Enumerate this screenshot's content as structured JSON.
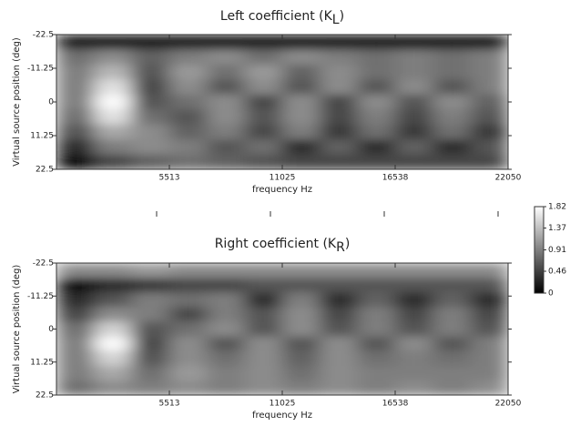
{
  "chart_data": [
    {
      "type": "heatmap",
      "title": "Left coefficient (K",
      "title_sub": "L",
      "title_end": ")",
      "xlabel": "frequency Hz",
      "ylabel": "Virtual source position (deg)",
      "xlim": [
        0,
        22050
      ],
      "xticks": [
        5513,
        11025,
        16538,
        22050
      ],
      "ylim": [
        -22.5,
        22.5
      ],
      "yticks": [
        -22.5,
        -11.25,
        0,
        11.25,
        22.5
      ],
      "z": [
        [
          0.2,
          0.2,
          0.2,
          0.2,
          0.2,
          0.2,
          0.2,
          0.2,
          0.2,
          0.2,
          0.2,
          0.2
        ],
        [
          0.8,
          1.0,
          0.7,
          0.9,
          1.0,
          0.8,
          1.0,
          0.9,
          0.8,
          0.9,
          0.8,
          0.9
        ],
        [
          0.9,
          1.3,
          0.6,
          1.1,
          0.8,
          1.1,
          0.7,
          1.0,
          0.8,
          0.9,
          0.8,
          0.9
        ],
        [
          0.9,
          1.6,
          0.5,
          1.0,
          0.6,
          1.0,
          0.6,
          1.0,
          0.6,
          1.0,
          0.6,
          0.9
        ],
        [
          0.9,
          1.8,
          0.6,
          0.8,
          1.0,
          0.5,
          1.0,
          0.5,
          1.0,
          0.6,
          1.0,
          0.7
        ],
        [
          0.8,
          1.6,
          0.8,
          0.6,
          1.0,
          0.6,
          1.0,
          0.5,
          0.9,
          0.5,
          0.9,
          0.6
        ],
        [
          0.6,
          1.2,
          1.0,
          0.7,
          0.9,
          0.5,
          0.9,
          0.4,
          0.8,
          0.4,
          0.8,
          0.4
        ],
        [
          0.3,
          0.9,
          1.0,
          0.9,
          0.6,
          0.8,
          0.3,
          0.7,
          0.3,
          0.7,
          0.3,
          0.6
        ],
        [
          0.1,
          0.5,
          0.7,
          0.8,
          0.7,
          0.6,
          0.5,
          0.5,
          0.5,
          0.5,
          0.5,
          0.5
        ]
      ]
    },
    {
      "type": "heatmap",
      "title": "Right coefficient (K",
      "title_sub": "R",
      "title_end": ")",
      "xlabel": "frequency Hz",
      "ylabel": "Virtual source position (deg)",
      "xlim": [
        0,
        22050
      ],
      "xticks": [
        5513,
        11025,
        16538,
        22050
      ],
      "ylim": [
        -22.5,
        22.5
      ],
      "yticks": [
        -22.5,
        -11.25,
        0,
        11.25,
        22.5
      ],
      "z": [
        [
          1.0,
          1.0,
          1.1,
          1.0,
          1.0,
          1.0,
          1.0,
          1.0,
          1.0,
          1.0,
          1.0,
          1.0
        ],
        [
          0.1,
          0.3,
          0.4,
          0.5,
          0.5,
          0.6,
          0.6,
          0.6,
          0.6,
          0.6,
          0.6,
          0.6
        ],
        [
          0.3,
          0.6,
          0.9,
          0.8,
          0.9,
          0.3,
          0.9,
          0.3,
          0.7,
          0.3,
          0.7,
          0.3
        ],
        [
          0.5,
          1.0,
          0.9,
          0.5,
          0.9,
          0.6,
          1.0,
          0.5,
          0.9,
          0.5,
          0.9,
          0.5
        ],
        [
          0.8,
          1.5,
          0.6,
          0.8,
          1.0,
          0.6,
          1.0,
          0.6,
          0.9,
          0.6,
          0.9,
          0.6
        ],
        [
          0.9,
          1.8,
          0.5,
          1.0,
          0.6,
          1.0,
          0.6,
          1.0,
          0.6,
          1.0,
          0.6,
          0.9
        ],
        [
          0.9,
          1.5,
          0.6,
          1.0,
          0.8,
          1.0,
          0.7,
          1.0,
          0.8,
          0.9,
          0.8,
          0.9
        ],
        [
          0.9,
          1.2,
          0.8,
          1.1,
          0.9,
          1.0,
          0.8,
          1.0,
          0.9,
          0.9,
          0.9,
          0.9
        ],
        [
          0.8,
          1.0,
          0.9,
          1.0,
          0.9,
          1.0,
          0.9,
          1.0,
          0.9,
          1.0,
          0.9,
          1.0
        ]
      ],
      "colorbar": {
        "zlim": [
          0,
          1.82
        ],
        "zticks": [
          0,
          0.46,
          0.91,
          1.37,
          1.82
        ]
      }
    }
  ]
}
